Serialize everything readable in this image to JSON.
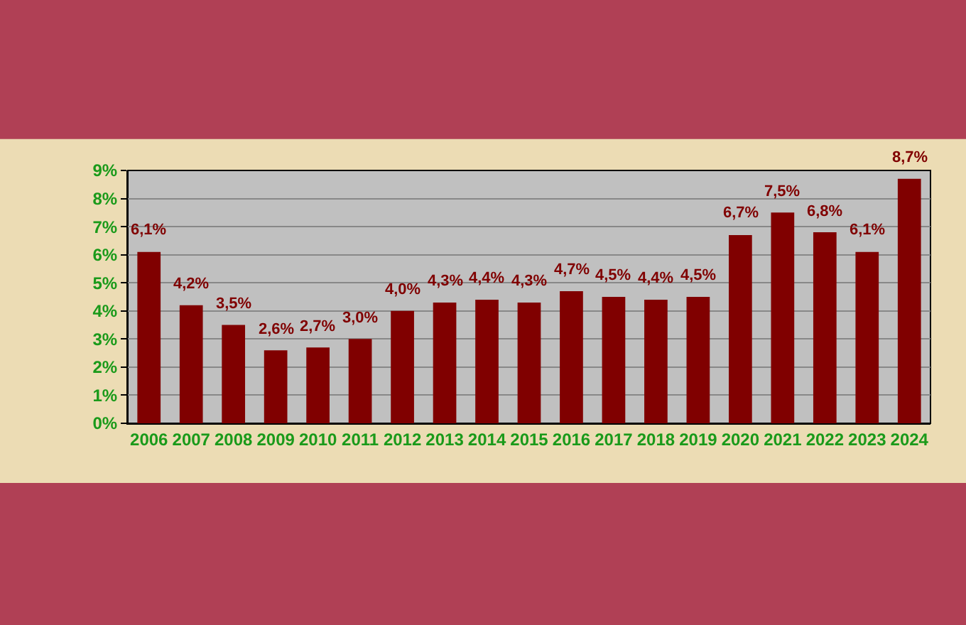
{
  "chart_data": {
    "type": "bar",
    "categories": [
      "2006",
      "2007",
      "2008",
      "2009",
      "2010",
      "2011",
      "2012",
      "2013",
      "2014",
      "2015",
      "2016",
      "2017",
      "2018",
      "2019",
      "2020",
      "2021",
      "2022",
      "2023",
      "2024"
    ],
    "values": [
      6.1,
      4.2,
      3.5,
      2.6,
      2.7,
      3.0,
      4.0,
      4.3,
      4.4,
      4.3,
      4.7,
      4.5,
      4.4,
      4.5,
      6.7,
      7.5,
      6.8,
      6.1,
      8.7
    ],
    "value_labels": [
      "6,1%",
      "4,2%",
      "3,5%",
      "2,6%",
      "2,7%",
      "3,0%",
      "4,0%",
      "4,3%",
      "4,4%",
      "4,3%",
      "4,7%",
      "4,5%",
      "4,4%",
      "4,5%",
      "6,7%",
      "7,5%",
      "6,8%",
      "6,1%",
      "8,7%"
    ],
    "color": "#800000",
    "ylim": [
      0,
      9
    ],
    "yticks": [
      {
        "value": 0,
        "label": "0%"
      },
      {
        "value": 1,
        "label": "1%"
      },
      {
        "value": 2,
        "label": "2%"
      },
      {
        "value": 3,
        "label": "3%"
      },
      {
        "value": 4,
        "label": "4%"
      },
      {
        "value": 5,
        "label": "5%"
      },
      {
        "value": 6,
        "label": "6%"
      },
      {
        "value": 7,
        "label": "7%"
      },
      {
        "value": 8,
        "label": "8%"
      },
      {
        "value": 9,
        "label": "9%"
      }
    ],
    "grid": "y",
    "legend": false
  }
}
